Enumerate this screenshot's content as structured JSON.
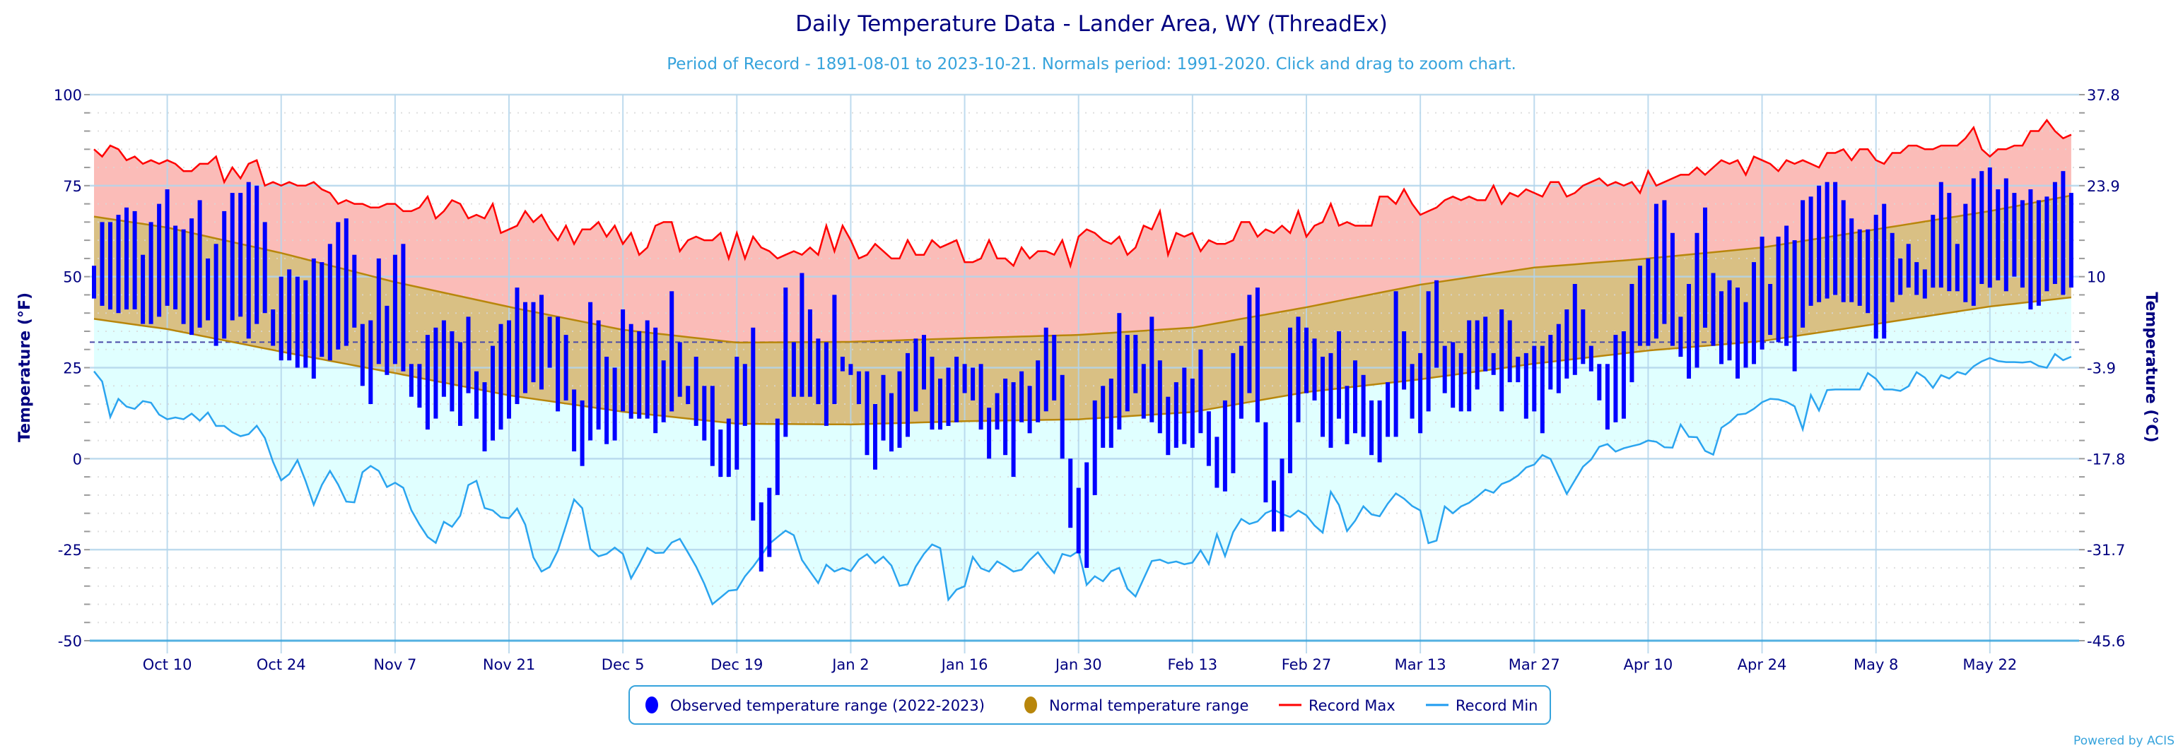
{
  "header": {
    "title": "Daily Temperature Data - Lander Area, WY (ThreadEx)",
    "subtitle": "Period of Record - 1891-08-01 to 2023-10-21. Normals period: 1991-2020. Click and drag to zoom chart."
  },
  "legend": {
    "observed": "Observed temperature range (2022-2023)",
    "normal": "Normal temperature range",
    "record_max": "Record Max",
    "record_min": "Record Min"
  },
  "credit": "Powered by ACIS",
  "colors": {
    "observed": "#0000ff",
    "normal_fill": "#d9c084",
    "normal_line": "#b8860b",
    "record_max": "#ff0000",
    "record_max_fill": "#fbbcb8",
    "record_min": "#2aa4ef",
    "record_min_fill": "#e0ffff",
    "grid": "#b3d5ec",
    "text": "#000080"
  },
  "chart_data": {
    "type": "bar",
    "title": "Daily Temperature Data - Lander Area, WY (ThreadEx)",
    "ylabel": "Temperature (°F)",
    "y2label": "Temperature (°C)",
    "ylim": [
      -50,
      100
    ],
    "yticks": [
      "100",
      "75",
      "50",
      "25",
      "0",
      "-25",
      "-50"
    ],
    "y2ticks": [
      "37.8",
      "23.9",
      "10",
      "-3.9",
      "-17.8",
      "-31.7",
      "-45.6"
    ],
    "freezing_line": 32,
    "start_date": "Oct 1",
    "num_days": 244,
    "xticks": [
      {
        "label": "Oct 10",
        "day": 9
      },
      {
        "label": "Oct 24",
        "day": 23
      },
      {
        "label": "Nov 7",
        "day": 37
      },
      {
        "label": "Nov 21",
        "day": 51
      },
      {
        "label": "Dec 5",
        "day": 65
      },
      {
        "label": "Dec 19",
        "day": 79
      },
      {
        "label": "Jan 2",
        "day": 93
      },
      {
        "label": "Jan 16",
        "day": 107
      },
      {
        "label": "Jan 30",
        "day": 121
      },
      {
        "label": "Feb 13",
        "day": 135
      },
      {
        "label": "Feb 27",
        "day": 149
      },
      {
        "label": "Mar 13",
        "day": 163
      },
      {
        "label": "Mar 27",
        "day": 177
      },
      {
        "label": "Apr 10",
        "day": 191
      },
      {
        "label": "Apr 24",
        "day": 205
      },
      {
        "label": "May 8",
        "day": 219
      },
      {
        "label": "May 22",
        "day": 233
      }
    ],
    "observed_high": [
      53,
      65,
      65,
      67,
      69,
      68,
      56,
      65,
      70,
      74,
      64,
      63,
      66,
      71,
      55,
      59,
      68,
      73,
      73,
      76,
      75,
      65,
      41,
      50,
      52,
      50,
      49,
      55,
      54,
      59,
      65,
      66,
      56,
      37,
      38,
      55,
      42,
      56,
      59,
      26,
      26,
      34,
      36,
      38,
      35,
      32,
      39,
      24,
      21,
      31,
      37,
      38,
      47,
      43,
      43,
      45,
      39,
      39,
      34,
      19,
      16,
      43,
      38,
      28,
      25,
      41,
      37,
      35,
      38,
      36,
      27,
      46,
      32,
      20,
      28,
      20,
      20,
      8,
      11,
      28,
      26,
      36,
      -12,
      -8,
      11,
      47,
      32,
      51,
      41,
      33,
      32,
      45,
      28,
      26,
      24,
      24,
      15,
      23,
      18,
      24,
      29,
      33,
      34,
      28,
      22,
      25,
      28,
      26,
      25,
      26,
      14,
      18,
      22,
      21,
      24,
      20,
      27,
      36,
      34,
      23,
      0,
      -8,
      -1,
      16,
      20,
      22,
      40,
      34,
      34,
      26,
      39,
      27,
      17,
      21,
      25,
      22,
      30,
      13,
      6,
      16,
      29,
      31,
      45,
      47,
      10,
      -6,
      0,
      36,
      39,
      36,
      33,
      28,
      29,
      35,
      20,
      27,
      23,
      16,
      16,
      21,
      46,
      35,
      26,
      29,
      46,
      49,
      31,
      32,
      29,
      38,
      38,
      39,
      29,
      41,
      38,
      28,
      29,
      31,
      31,
      34,
      37,
      41,
      48,
      41,
      31,
      26,
      26,
      34,
      35,
      48,
      53,
      55,
      70,
      71,
      62,
      39,
      48,
      62,
      69,
      51,
      46,
      49,
      47,
      43,
      54,
      61,
      48,
      61,
      64,
      60,
      71,
      72,
      75,
      76,
      76,
      71,
      66,
      63,
      63,
      67,
      70,
      62,
      55,
      59,
      54,
      52,
      67,
      76,
      73,
      59,
      70,
      77,
      79,
      80,
      74,
      77,
      73,
      71,
      74,
      71,
      72,
      76,
      79,
      73
    ],
    "observed_low": [
      44,
      42,
      41,
      40,
      41,
      41,
      37,
      37,
      39,
      42,
      41,
      37,
      34,
      36,
      38,
      31,
      33,
      38,
      39,
      33,
      37,
      40,
      31,
      27,
      27,
      25,
      25,
      22,
      28,
      27,
      30,
      31,
      36,
      20,
      15,
      26,
      23,
      26,
      24,
      17,
      14,
      8,
      11,
      17,
      13,
      9,
      18,
      11,
      2,
      5,
      8,
      11,
      15,
      18,
      21,
      19,
      25,
      13,
      16,
      2,
      -2,
      5,
      8,
      4,
      5,
      13,
      11,
      11,
      11,
      7,
      10,
      13,
      17,
      15,
      9,
      5,
      -2,
      -5,
      -5,
      -3,
      9,
      -17,
      -31,
      -27,
      -10,
      6,
      17,
      17,
      17,
      15,
      9,
      15,
      24,
      23,
      15,
      1,
      -3,
      5,
      2,
      3,
      6,
      13,
      19,
      8,
      8,
      9,
      10,
      18,
      16,
      8,
      0,
      8,
      1,
      -5,
      10,
      7,
      10,
      13,
      16,
      0,
      -19,
      -26,
      -30,
      -10,
      3,
      3,
      8,
      13,
      18,
      11,
      10,
      7,
      1,
      3,
      4,
      3,
      7,
      -2,
      -8,
      -9,
      -4,
      11,
      18,
      10,
      -12,
      -20,
      -20,
      -4,
      10,
      18,
      16,
      6,
      3,
      11,
      4,
      7,
      6,
      1,
      -1,
      6,
      6,
      19,
      11,
      7,
      13,
      25,
      18,
      14,
      13,
      13,
      19,
      24,
      23,
      13,
      21,
      21,
      11,
      13,
      7,
      19,
      18,
      22,
      23,
      26,
      24,
      16,
      8,
      10,
      11,
      21,
      31,
      31,
      33,
      37,
      31,
      28,
      22,
      25,
      36,
      31,
      26,
      27,
      22,
      25,
      26,
      30,
      34,
      32,
      31,
      24,
      36,
      42,
      43,
      44,
      45,
      43,
      43,
      42,
      40,
      33,
      33,
      43,
      45,
      47,
      45,
      44,
      47,
      47,
      46,
      46,
      43,
      42,
      48,
      47,
      49,
      46,
      50,
      47,
      41,
      42,
      46,
      48,
      45,
      47
    ],
    "normal_anchor_days": [
      0,
      9,
      23,
      37,
      51,
      65,
      79,
      93,
      107,
      121,
      135,
      149,
      163,
      177,
      191,
      205,
      219,
      233,
      243
    ],
    "normal_high": [
      66.5,
      63.5,
      56.5,
      48.5,
      41.7,
      35.4,
      31.9,
      32.1,
      33.1,
      34,
      36,
      41.6,
      47.8,
      52.5,
      55,
      58,
      63,
      68,
      72.3
    ],
    "normal_low": [
      38.4,
      35.6,
      29.4,
      23.5,
      17.4,
      12.9,
      9.6,
      9.4,
      10.3,
      10.8,
      12.8,
      18.3,
      21.8,
      26.1,
      29.7,
      32.3,
      37,
      41.8,
      44.3
    ],
    "record_max": [
      85,
      83,
      86,
      85,
      82,
      83,
      81,
      82,
      81,
      82,
      81,
      79,
      79,
      81,
      81,
      83,
      76,
      80,
      77,
      81,
      82,
      75,
      76,
      75,
      76,
      75,
      75,
      76,
      74,
      73,
      70,
      71,
      70,
      70,
      69,
      69,
      70,
      70,
      68,
      68,
      69,
      72,
      66,
      68,
      71,
      70,
      66,
      67,
      66,
      70,
      62,
      63,
      64,
      68,
      65,
      67,
      63,
      60,
      64,
      59,
      63,
      63,
      65,
      61,
      64,
      59,
      62,
      56,
      58,
      64,
      65,
      65,
      57,
      60,
      61,
      60,
      60,
      62,
      55,
      62,
      55,
      61,
      58,
      57,
      55,
      56,
      57,
      56,
      58,
      56,
      64,
      57,
      64,
      60,
      55,
      56,
      59,
      57,
      55,
      55,
      60,
      56,
      56,
      60,
      58,
      59,
      60,
      54,
      54,
      55,
      60,
      55,
      55,
      53,
      58,
      55,
      57,
      57,
      56,
      60,
      53,
      61,
      63,
      62,
      60,
      59,
      61,
      56,
      58,
      64,
      63,
      68,
      56,
      62,
      61,
      62,
      57,
      60,
      59,
      59,
      60,
      65,
      65,
      61,
      63,
      62,
      64,
      62,
      68,
      61,
      64,
      65,
      70,
      64,
      65,
      64,
      64,
      64,
      72,
      72,
      70,
      74,
      70,
      67,
      68,
      69,
      71,
      72,
      71,
      72,
      71,
      71,
      75,
      70,
      73,
      72,
      74,
      73,
      72,
      76,
      76,
      72,
      73,
      75,
      76,
      77,
      75,
      76,
      75,
      76,
      73,
      79,
      75,
      76,
      77,
      78,
      78,
      80,
      78,
      80,
      82,
      81,
      82,
      78,
      83,
      82,
      81,
      79,
      82,
      81,
      82,
      81,
      80,
      84,
      84,
      85,
      82,
      85,
      85,
      82,
      81,
      84,
      84,
      86,
      86,
      85,
      85,
      86,
      86,
      86,
      88,
      91,
      85,
      83,
      85,
      85,
      86,
      86,
      90,
      90,
      93,
      90,
      88,
      89
    ],
    "record_min": [
      24,
      21,
      10,
      18,
      13,
      14,
      17,
      14,
      10,
      12,
      10,
      13,
      10,
      13,
      9,
      9,
      7,
      6,
      7,
      10,
      3,
      -4,
      -8,
      1,
      -3,
      -14,
      -8,
      -3,
      -7,
      -12,
      -12,
      -2,
      -2,
      -4,
      -10,
      -4,
      -12,
      -17,
      -20,
      -25,
      -17,
      -19,
      -16,
      -7,
      -6,
      -15,
      -14,
      -17,
      -16,
      -12,
      -24,
      -31,
      -31,
      -27,
      -20,
      -11,
      -13,
      -25,
      -27,
      -26,
      -24,
      -27,
      -36,
      -24,
      -25,
      -27,
      -24,
      -21,
      -25,
      -29,
      -34,
      -40,
      -38,
      -36,
      -36,
      -31,
      -29,
      -25,
      -22,
      -21,
      -18,
      -27,
      -30,
      -35,
      -29,
      -31,
      -30,
      -31,
      -27,
      -26,
      -30,
      -25,
      -33,
      -37,
      -31,
      -27,
      -24,
      -22,
      -39,
      -36,
      -35,
      -26,
      -31,
      -31,
      -27,
      -31,
      -31,
      -30,
      -25,
      -27,
      -33,
      -26,
      -27,
      -25,
      -35,
      -32,
      -34,
      -30,
      -30,
      -39,
      -37,
      -29,
      -27,
      -29,
      -28,
      -29,
      -29,
      -25,
      -29,
      -20,
      -28,
      -18,
      -16,
      -19,
      -16,
      -14,
      -14,
      -17,
      -14,
      -15,
      -18,
      -21,
      -9,
      -13,
      -21,
      -16,
      -12,
      -17,
      -15,
      -10,
      -9,
      -14,
      -11,
      -23,
      -24,
      -13,
      -15,
      -13,
      -12,
      -10,
      -8,
      -10,
      -5,
      -7,
      -2,
      -3,
      1,
      1,
      -4,
      -10,
      -6,
      -2,
      0,
      4,
      4,
      1,
      4,
      3,
      5,
      5,
      4,
      1,
      10,
      6,
      6,
      2,
      1,
      10,
      10,
      13,
      12,
      15,
      16,
      17,
      15,
      17,
      6,
      18,
      13,
      19,
      19,
      19,
      19,
      19,
      26,
      19,
      19,
      19,
      18,
      24,
      23,
      19,
      23,
      22,
      24,
      23,
      26,
      27,
      28,
      26,
      27,
      26,
      27,
      26,
      24,
      29,
      27,
      28
    ]
  }
}
